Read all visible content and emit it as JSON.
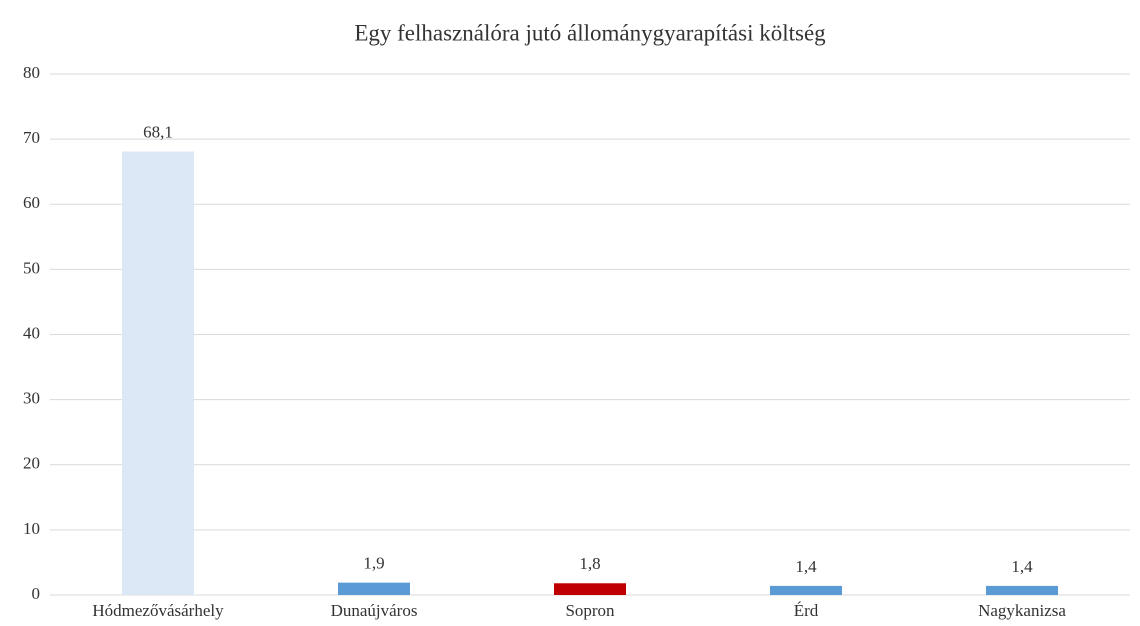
{
  "chart_data": {
    "type": "bar",
    "title": "Egy felhasználóra jutó állománygyarapítási költség",
    "categories": [
      "Hódmezővásárhely",
      "Dunaújváros",
      "Sopron",
      "Érd",
      "Nagykanizsa"
    ],
    "values": [
      68.1,
      1.9,
      1.8,
      1.4,
      1.4
    ],
    "value_labels": [
      "68,1",
      "1,9",
      "1,8",
      "1,4",
      "1,4"
    ],
    "colors": [
      "#dce8f5",
      "#5b9bd5",
      "#c00000",
      "#5b9bd5",
      "#5b9bd5"
    ],
    "ylim": [
      0,
      80
    ],
    "yticks": [
      0,
      10,
      20,
      30,
      40,
      50,
      60,
      70,
      80
    ],
    "grid": true
  }
}
